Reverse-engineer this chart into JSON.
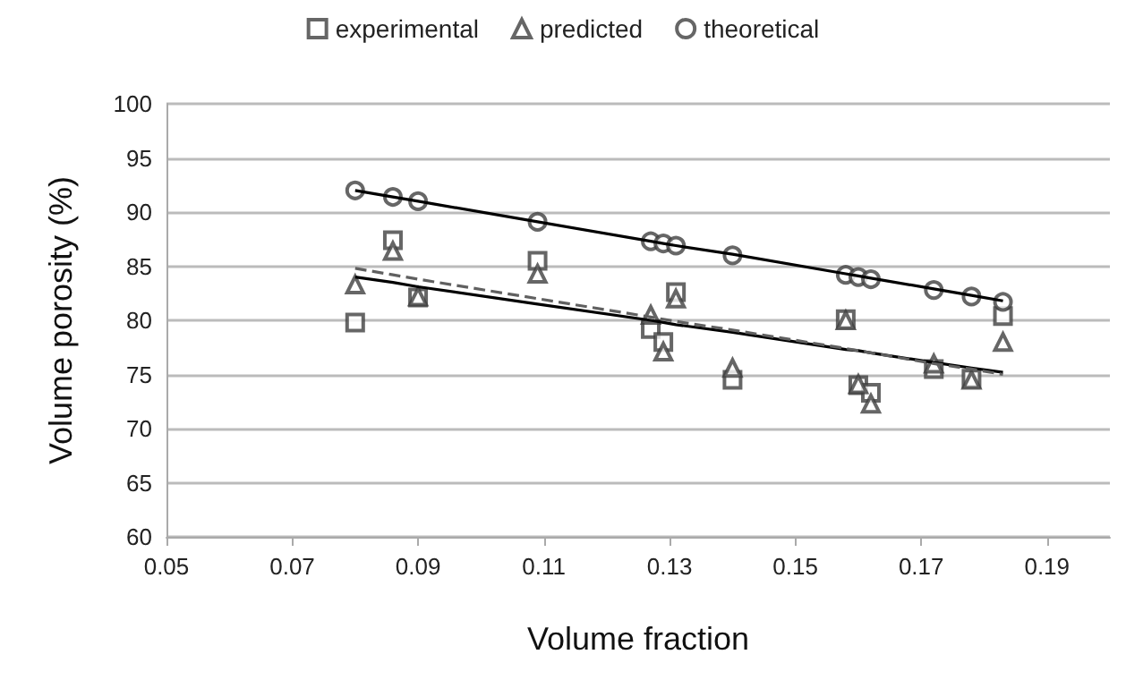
{
  "chart_data": {
    "type": "scatter",
    "xlabel": "Volume fraction",
    "ylabel": "Volume porosity (%)",
    "x": [
      0.08,
      0.086,
      0.09,
      0.109,
      0.127,
      0.129,
      0.131,
      0.14,
      0.158,
      0.16,
      0.162,
      0.172,
      0.178,
      0.183
    ],
    "series": [
      {
        "name": "experimental",
        "color": "#404040",
        "marker": "square",
        "values": [
          79.8,
          87.4,
          82.1,
          85.5,
          79.2,
          78,
          82.6,
          74.5,
          80.1,
          74,
          73.3,
          75.5,
          74.6,
          80.4
        ]
      },
      {
        "name": "predicted",
        "color": "#404040",
        "marker": "triangle",
        "values": [
          83.3,
          86.4,
          82.2,
          84.3,
          80.5,
          77.1,
          82,
          75.6,
          80,
          74.1,
          72.3,
          76,
          74.5,
          78
        ]
      },
      {
        "name": "theoretical",
        "color": "#404040",
        "marker": "circle",
        "values": [
          92,
          91.4,
          91,
          89.1,
          87.3,
          87.1,
          86.9,
          86,
          84.2,
          84,
          83.8,
          82.8,
          82.2,
          81.7
        ]
      },
      {
        "type": "line",
        "color": "#000000",
        "line_style": "solid",
        "marker": "none",
        "values": [
          92.0,
          91.4,
          91.0,
          89.1,
          87.3,
          87.1,
          86.9,
          86.1,
          84.3,
          84.1,
          83.9,
          82.9,
          82.3,
          81.8
        ]
      },
      {
        "type": "line",
        "color": "#000000",
        "line_style": "solid",
        "marker": "none",
        "values": [
          84.0,
          83.5,
          83.1,
          81.5,
          80.0,
          79.8,
          79.6,
          78.9,
          77.3,
          77.2,
          77.0,
          76.1,
          75.6,
          75.2
        ]
      },
      {
        "type": "line",
        "color": "#606060",
        "line_style": "dashed",
        "marker": "none",
        "values": [
          84.8,
          84.2,
          83.8,
          82.0,
          80.3,
          80.1,
          79.9,
          79.1,
          77.4,
          77.2,
          77.0,
          76.0,
          75.5,
          75.0
        ]
      }
    ],
    "xlim": [
      0.05,
      0.2
    ],
    "xticks": [
      0.05,
      0.07,
      0.09,
      0.11,
      0.13,
      0.15,
      0.17,
      0.19
    ],
    "ylim": [
      60,
      100
    ],
    "yticks": [
      60,
      65,
      70,
      75,
      80,
      85,
      90,
      95,
      100
    ],
    "grid": "y",
    "legend": "top"
  }
}
